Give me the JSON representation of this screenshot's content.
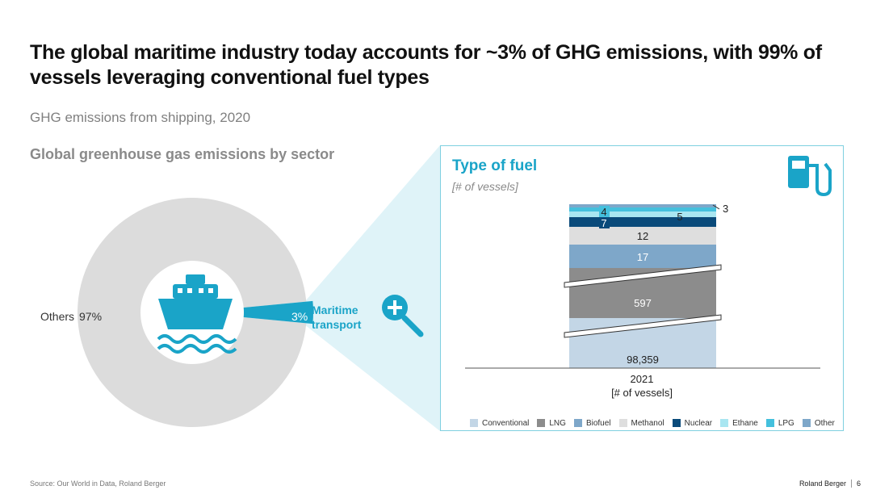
{
  "header": {
    "title": "The global maritime industry today accounts for ~3% of GHG emissions, with 99% of vessels leveraging conventional fuel types",
    "subtitle": "GHG emissions from shipping, 2020"
  },
  "donut_section": {
    "title": "Global greenhouse gas emissions by sector",
    "others_label": "Others",
    "others_value": "97%",
    "maritime_value": "3%",
    "maritime_label_line1": "Maritime",
    "maritime_label_line2": "transport",
    "center_icon": "ship-icon",
    "zoom_icon": "zoom-in-icon"
  },
  "fuel_panel": {
    "title": "Type of fuel",
    "unit": "[# of vessels]",
    "icon": "fuel-pump-icon",
    "x_label_year": "2021",
    "x_label_unit": "[# of vessels]"
  },
  "chart_data": [
    {
      "type": "pie",
      "title": "Global greenhouse gas emissions by sector",
      "slices": [
        {
          "name": "Others",
          "value": 97
        },
        {
          "name": "Maritime transport",
          "value": 3
        }
      ]
    },
    {
      "type": "bar",
      "title": "Type of fuel",
      "ylabel": "[# of vessels]",
      "categories": [
        "2021"
      ],
      "axis_break": true,
      "series": [
        {
          "name": "Conventional",
          "values": [
            98359
          ],
          "label": "98,359",
          "color": "#c3d6e6"
        },
        {
          "name": "LNG",
          "values": [
            597
          ],
          "label": "597",
          "color": "#8c8c8c"
        },
        {
          "name": "Biofuel",
          "values": [
            17
          ],
          "label": "17",
          "color": "#7ea7c9"
        },
        {
          "name": "Methanol",
          "values": [
            12
          ],
          "label": "12",
          "color": "#dedede"
        },
        {
          "name": "Nuclear",
          "values": [
            7
          ],
          "label": "7",
          "color": "#0a4a7a"
        },
        {
          "name": "Ethane",
          "values": [
            5
          ],
          "label": "5",
          "color": "#a9e6f1"
        },
        {
          "name": "LPG",
          "values": [
            4
          ],
          "label": "4",
          "color": "#44c0dd"
        },
        {
          "name": "Other",
          "values": [
            3
          ],
          "label": "3",
          "color": "#7ea7c9"
        }
      ]
    }
  ],
  "footer": {
    "source": "Source: Our World in Data, Roland Berger",
    "brand": "Roland Berger",
    "page_number": "6"
  },
  "colors": {
    "accent": "#1aa4c8",
    "donut_gray": "#dcdcdc",
    "zoom_fill": "#dff3f8"
  }
}
